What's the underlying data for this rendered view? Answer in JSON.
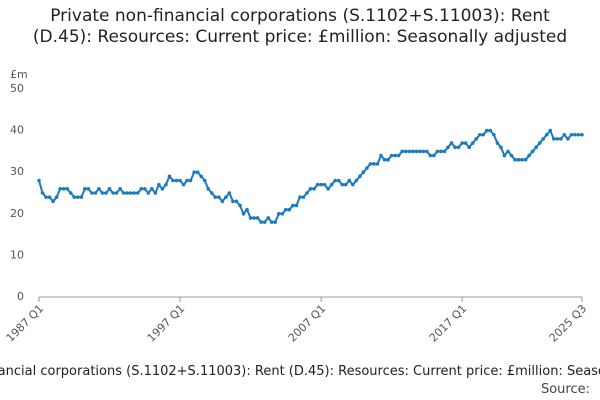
{
  "chart_data": {
    "type": "line",
    "title": "Private non-financial corporations (S.1102+S.11003): Rent (D.45): Resources: Current price: £million: Seasonally adjusted",
    "y_unit": "£m",
    "source_label": "Source:",
    "categories": [
      "1987 Q1",
      null,
      null,
      null,
      null,
      null,
      null,
      null,
      null,
      null,
      null,
      null,
      null,
      null,
      null,
      null,
      null,
      null,
      null,
      null,
      null,
      null,
      null,
      null,
      null,
      null,
      null,
      null,
      null,
      null,
      null,
      null,
      null,
      null,
      null,
      null,
      null,
      null,
      null,
      null,
      "1997 Q1",
      null,
      null,
      null,
      null,
      null,
      null,
      null,
      null,
      null,
      null,
      null,
      null,
      null,
      null,
      null,
      null,
      null,
      null,
      null,
      null,
      null,
      null,
      null,
      null,
      null,
      null,
      null,
      null,
      null,
      null,
      null,
      null,
      null,
      null,
      null,
      null,
      null,
      null,
      null,
      "2007 Q1",
      null,
      null,
      null,
      null,
      null,
      null,
      null,
      null,
      null,
      null,
      null,
      null,
      null,
      null,
      null,
      null,
      null,
      null,
      null,
      null,
      null,
      null,
      null,
      null,
      null,
      null,
      null,
      null,
      null,
      null,
      null,
      null,
      null,
      null,
      null,
      null,
      null,
      null,
      null,
      "2017 Q1",
      null,
      null,
      null,
      null,
      null,
      null,
      null,
      null,
      null,
      null,
      null,
      null,
      null,
      null,
      null,
      null,
      null,
      null,
      null,
      null,
      null,
      null,
      null,
      null,
      null,
      null,
      null,
      null,
      null,
      null,
      null,
      null,
      null,
      "2025 Q3"
    ],
    "values": [
      28,
      25,
      24,
      24,
      23,
      24,
      26,
      26,
      26,
      25,
      24,
      24,
      24,
      26,
      26,
      25,
      25,
      26,
      25,
      25,
      26,
      25,
      25,
      26,
      25,
      25,
      25,
      25,
      25,
      26,
      26,
      25,
      26,
      25,
      27,
      26,
      27,
      29,
      28,
      28,
      28,
      27,
      28,
      28,
      30,
      30,
      29,
      28,
      26,
      25,
      24,
      24,
      23,
      24,
      25,
      23,
      23,
      22,
      20,
      21,
      19,
      19,
      19,
      18,
      18,
      19,
      18,
      18,
      20,
      20,
      21,
      21,
      22,
      22,
      24,
      24,
      25,
      26,
      26,
      27,
      27,
      27,
      26,
      27,
      28,
      28,
      27,
      27,
      28,
      27,
      28,
      29,
      30,
      31,
      32,
      32,
      32,
      34,
      33,
      33,
      34,
      34,
      34,
      35,
      35,
      35,
      35,
      35,
      35,
      35,
      35,
      34,
      34,
      35,
      35,
      35,
      36,
      37,
      36,
      36,
      37,
      37,
      36,
      37,
      38,
      39,
      39,
      40,
      40,
      39,
      37,
      36,
      34,
      35,
      34,
      33,
      33,
      33,
      33,
      34,
      35,
      36,
      37,
      38,
      39,
      40,
      38,
      38,
      38,
      39,
      38,
      39,
      39,
      39,
      39
    ],
    "color": "#1a7bbf",
    "ylim": [
      0,
      50
    ],
    "yticks": [
      0,
      10,
      20,
      30,
      40,
      50
    ],
    "grid": false
  }
}
